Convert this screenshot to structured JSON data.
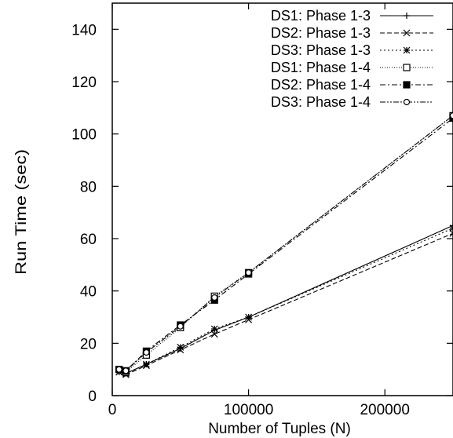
{
  "chart_data": {
    "type": "line",
    "title": "",
    "xlabel": "Number of Tuples (N)",
    "ylabel": "Run Time (sec)",
    "xlim": [
      0,
      250000
    ],
    "ylim": [
      0,
      150
    ],
    "x_ticks": [
      0,
      100000,
      200000
    ],
    "x_tick_labels": [
      "0",
      "100000",
      "200000"
    ],
    "y_ticks": [
      0,
      20,
      40,
      60,
      80,
      100,
      120,
      140
    ],
    "y_tick_labels": [
      "0",
      "20",
      "40",
      "60",
      "80",
      "100",
      "120",
      "140"
    ],
    "grid": false,
    "legend_position": "top-right",
    "series": [
      {
        "name": "DS1: Phase 1-3",
        "marker": "plus",
        "dash": "solid",
        "x": [
          5000,
          10000,
          25000,
          50000,
          75000,
          100000,
          250000
        ],
        "y": [
          9,
          8.5,
          12,
          18,
          25,
          30,
          65
        ]
      },
      {
        "name": "DS2: Phase 1-3",
        "marker": "cross",
        "dash": "dashed",
        "x": [
          5000,
          10000,
          25000,
          50000,
          75000,
          100000,
          250000
        ],
        "y": [
          9,
          8,
          11.5,
          17.5,
          23.5,
          29,
          62
        ]
      },
      {
        "name": "DS3: Phase 1-3",
        "marker": "star",
        "dash": "dotted",
        "x": [
          5000,
          10000,
          25000,
          50000,
          75000,
          100000,
          250000
        ],
        "y": [
          9,
          8.5,
          12,
          18.5,
          25.5,
          30,
          64
        ]
      },
      {
        "name": "DS1: Phase 1-4",
        "marker": "open-square",
        "dash": "finedot",
        "x": [
          5000,
          10000,
          25000,
          50000,
          75000,
          100000,
          250000
        ],
        "y": [
          10,
          9,
          15.5,
          26,
          38,
          47,
          107
        ]
      },
      {
        "name": "DS2: Phase 1-4",
        "marker": "filled-square",
        "dash": "dashdot",
        "x": [
          5000,
          10000,
          25000,
          50000,
          75000,
          100000,
          250000
        ],
        "y": [
          10,
          9.5,
          17,
          27,
          36.5,
          46.5,
          106
        ]
      },
      {
        "name": "DS3: Phase 1-4",
        "marker": "circle",
        "dash": "dashdotdot",
        "x": [
          5000,
          10000,
          25000,
          50000,
          75000,
          100000,
          250000
        ],
        "y": [
          10,
          9.5,
          16.5,
          26.5,
          37.5,
          47,
          107
        ]
      }
    ]
  }
}
